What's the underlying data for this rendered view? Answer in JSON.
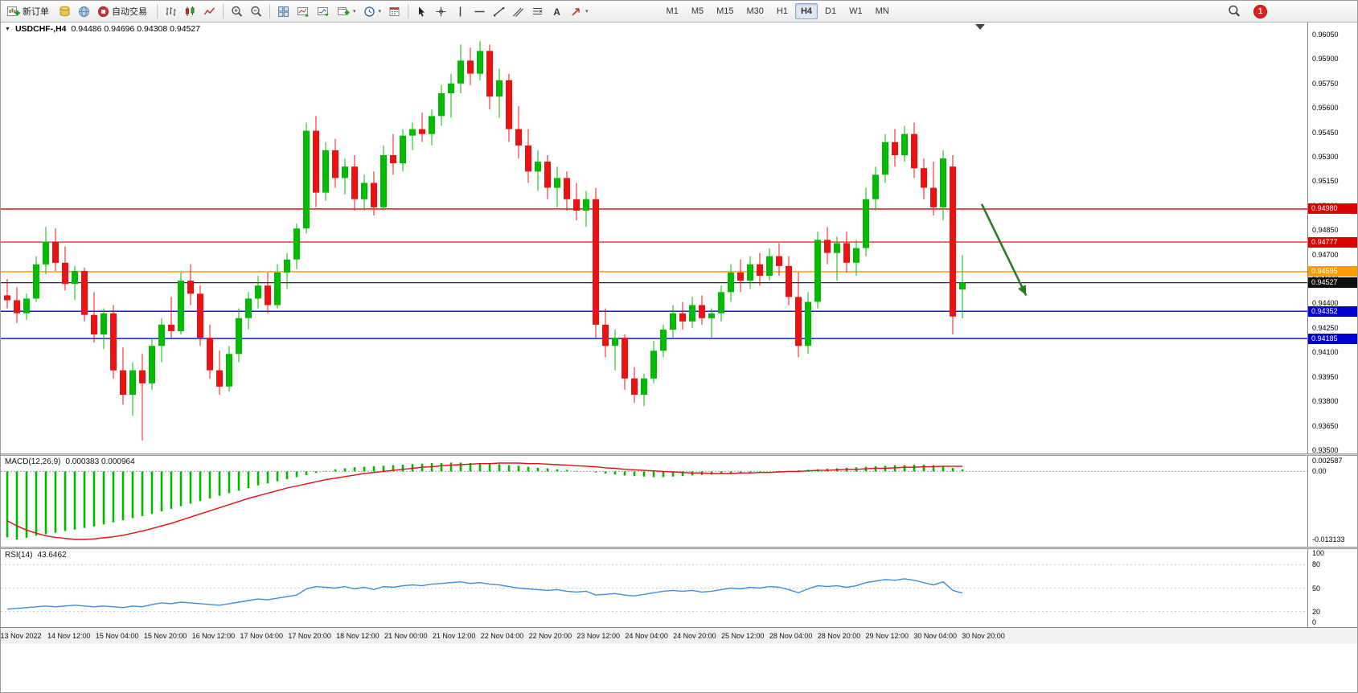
{
  "toolbar": {
    "new_order": "新订单",
    "autotrading": "自动交易",
    "timeframes": [
      "M1",
      "M5",
      "M15",
      "M30",
      "H1",
      "H4",
      "D1",
      "W1",
      "MN"
    ],
    "active_timeframe": "H4",
    "notification_count": "1"
  },
  "chart": {
    "symbol_label": "USDCHF-,H4",
    "ohlc": "0.94486 0.94696 0.94308 0.94527",
    "scale": {
      "top": 0.96124,
      "bottom": 0.9348
    },
    "price_axis_labels": [
      "0.96050",
      "0.95900",
      "0.95750",
      "0.95600",
      "0.95450",
      "0.95300",
      "0.95150",
      "0.95000",
      "0.94850",
      "0.94700",
      "0.94550",
      "0.94400",
      "0.94250",
      "0.94100",
      "0.93950",
      "0.93800",
      "0.93650",
      "0.93500"
    ],
    "time_axis_labels": [
      "13 Nov 2022",
      "14 Nov 12:00",
      "15 Nov 04:00",
      "15 Nov 20:00",
      "16 Nov 12:00",
      "17 Nov 04:00",
      "17 Nov 20:00",
      "18 Nov 12:00",
      "21 Nov 00:00",
      "21 Nov 12:00",
      "22 Nov 04:00",
      "22 Nov 20:00",
      "23 Nov 12:00",
      "24 Nov 04:00",
      "24 Nov 20:00",
      "25 Nov 12:00",
      "28 Nov 04:00",
      "28 Nov 20:00",
      "29 Nov 12:00",
      "30 Nov 04:00",
      "30 Nov 20:00"
    ],
    "lines": [
      {
        "price": 0.9498,
        "label": "0.94980",
        "color": "#dd0000",
        "width": 1.4
      },
      {
        "price": 0.94777,
        "label": "0.94777",
        "color": "#dd0000",
        "width": 1.1
      },
      {
        "price": 0.94595,
        "label": "0.94595",
        "color": "#ff9c00",
        "width": 1.6
      },
      {
        "price": 0.94527,
        "label": "0.94527",
        "color": "#101010",
        "width": 1.1
      },
      {
        "price": 0.94352,
        "label": "0.94352",
        "color": "#0000d0",
        "width": 1.4
      },
      {
        "price": 0.94185,
        "label": "0.94185",
        "color": "#0000d0",
        "width": 1.4
      }
    ],
    "arrow_annotation": {
      "from_bar": 101.0,
      "from_price": 0.9501,
      "to_bar": 105.6,
      "to_price": 0.9445,
      "color": "#2d7a27"
    }
  },
  "chart_data": {
    "type": "candlestick",
    "symbol": "USDCHF",
    "timeframe": "H4",
    "bull_color": "#00bb00",
    "bear_color": "#ee1111",
    "candles": [
      [
        0.9445,
        0.9455,
        0.9437,
        0.9442
      ],
      [
        0.9442,
        0.945,
        0.9428,
        0.9434
      ],
      [
        0.9434,
        0.9446,
        0.943,
        0.9443
      ],
      [
        0.9443,
        0.9469,
        0.9441,
        0.9464
      ],
      [
        0.9464,
        0.9487,
        0.9458,
        0.9478
      ],
      [
        0.9478,
        0.9486,
        0.946,
        0.9465
      ],
      [
        0.9465,
        0.9475,
        0.9448,
        0.9452
      ],
      [
        0.9452,
        0.9463,
        0.9442,
        0.946
      ],
      [
        0.946,
        0.9462,
        0.9429,
        0.9433
      ],
      [
        0.9433,
        0.9447,
        0.9416,
        0.9421
      ],
      [
        0.9421,
        0.9437,
        0.9412,
        0.9434
      ],
      [
        0.9434,
        0.9439,
        0.9394,
        0.9399
      ],
      [
        0.9399,
        0.9413,
        0.9378,
        0.9384
      ],
      [
        0.9384,
        0.9404,
        0.9371,
        0.9399
      ],
      [
        0.9399,
        0.9409,
        0.9356,
        0.9391
      ],
      [
        0.9391,
        0.9419,
        0.9387,
        0.9414
      ],
      [
        0.9414,
        0.9431,
        0.9404,
        0.9427
      ],
      [
        0.9427,
        0.9444,
        0.9419,
        0.9423
      ],
      [
        0.9423,
        0.9459,
        0.9421,
        0.9454
      ],
      [
        0.9454,
        0.9464,
        0.9439,
        0.9446
      ],
      [
        0.9446,
        0.9451,
        0.9414,
        0.9419
      ],
      [
        0.9419,
        0.9427,
        0.9394,
        0.9399
      ],
      [
        0.9399,
        0.9411,
        0.9384,
        0.9389
      ],
      [
        0.9389,
        0.9414,
        0.9386,
        0.9409
      ],
      [
        0.9409,
        0.9437,
        0.9404,
        0.9431
      ],
      [
        0.9431,
        0.9447,
        0.9424,
        0.9443
      ],
      [
        0.9443,
        0.9457,
        0.9437,
        0.9451
      ],
      [
        0.9451,
        0.9459,
        0.9434,
        0.9439
      ],
      [
        0.9439,
        0.9464,
        0.9437,
        0.9459
      ],
      [
        0.9459,
        0.9471,
        0.9449,
        0.9467
      ],
      [
        0.9467,
        0.9489,
        0.9461,
        0.9486
      ],
      [
        0.9486,
        0.9551,
        0.9483,
        0.9546
      ],
      [
        0.9546,
        0.9555,
        0.9499,
        0.9508
      ],
      [
        0.9508,
        0.9539,
        0.9503,
        0.9534
      ],
      [
        0.9534,
        0.9541,
        0.9511,
        0.9517
      ],
      [
        0.9517,
        0.9529,
        0.9507,
        0.9524
      ],
      [
        0.9524,
        0.9531,
        0.9497,
        0.9504
      ],
      [
        0.9504,
        0.9519,
        0.9497,
        0.9514
      ],
      [
        0.9514,
        0.9521,
        0.9494,
        0.9499
      ],
      [
        0.9499,
        0.9537,
        0.9497,
        0.9531
      ],
      [
        0.9531,
        0.9544,
        0.9519,
        0.9526
      ],
      [
        0.9526,
        0.9547,
        0.9521,
        0.9543
      ],
      [
        0.9543,
        0.9551,
        0.9534,
        0.9547
      ],
      [
        0.9547,
        0.9557,
        0.9539,
        0.9544
      ],
      [
        0.9544,
        0.9559,
        0.9537,
        0.9555
      ],
      [
        0.9555,
        0.9574,
        0.9549,
        0.9569
      ],
      [
        0.9569,
        0.9581,
        0.9554,
        0.9575
      ],
      [
        0.9575,
        0.9599,
        0.9569,
        0.9589
      ],
      [
        0.9589,
        0.9597,
        0.9574,
        0.9581
      ],
      [
        0.9581,
        0.9601,
        0.9577,
        0.9595
      ],
      [
        0.9595,
        0.9599,
        0.9559,
        0.9567
      ],
      [
        0.9567,
        0.9584,
        0.9554,
        0.9577
      ],
      [
        0.9577,
        0.9581,
        0.9539,
        0.9547
      ],
      [
        0.9547,
        0.9561,
        0.9529,
        0.9537
      ],
      [
        0.9537,
        0.9547,
        0.9514,
        0.9521
      ],
      [
        0.9521,
        0.9534,
        0.9509,
        0.9527
      ],
      [
        0.9527,
        0.9531,
        0.9504,
        0.9511
      ],
      [
        0.9511,
        0.9524,
        0.9499,
        0.9517
      ],
      [
        0.9517,
        0.9521,
        0.9497,
        0.9504
      ],
      [
        0.9504,
        0.9514,
        0.9491,
        0.9497
      ],
      [
        0.9497,
        0.9509,
        0.9487,
        0.9504
      ],
      [
        0.9504,
        0.9511,
        0.9419,
        0.9427
      ],
      [
        0.9427,
        0.9437,
        0.9407,
        0.9414
      ],
      [
        0.9414,
        0.9424,
        0.9399,
        0.9419
      ],
      [
        0.9419,
        0.9421,
        0.9387,
        0.9394
      ],
      [
        0.9394,
        0.9401,
        0.9379,
        0.9384
      ],
      [
        0.9384,
        0.9397,
        0.9377,
        0.9394
      ],
      [
        0.9394,
        0.9417,
        0.9391,
        0.9411
      ],
      [
        0.9411,
        0.9427,
        0.9407,
        0.9424
      ],
      [
        0.9424,
        0.9439,
        0.9419,
        0.9434
      ],
      [
        0.9434,
        0.9441,
        0.9424,
        0.9429
      ],
      [
        0.9429,
        0.9444,
        0.9425,
        0.9439
      ],
      [
        0.9439,
        0.9445,
        0.9427,
        0.9431
      ],
      [
        0.9431,
        0.9437,
        0.9419,
        0.9434
      ],
      [
        0.9434,
        0.9451,
        0.9429,
        0.9447
      ],
      [
        0.9447,
        0.9464,
        0.9441,
        0.9459
      ],
      [
        0.9459,
        0.9467,
        0.9447,
        0.9454
      ],
      [
        0.9454,
        0.9469,
        0.9449,
        0.9464
      ],
      [
        0.9464,
        0.9471,
        0.9451,
        0.9457
      ],
      [
        0.9457,
        0.9474,
        0.9454,
        0.9469
      ],
      [
        0.9469,
        0.9477,
        0.9457,
        0.9463
      ],
      [
        0.9463,
        0.9469,
        0.9439,
        0.9444
      ],
      [
        0.9444,
        0.9459,
        0.9407,
        0.9414
      ],
      [
        0.9414,
        0.9447,
        0.9409,
        0.9441
      ],
      [
        0.9441,
        0.9484,
        0.9437,
        0.9479
      ],
      [
        0.9479,
        0.9487,
        0.9464,
        0.9471
      ],
      [
        0.9471,
        0.9481,
        0.9454,
        0.9477
      ],
      [
        0.9477,
        0.9484,
        0.9459,
        0.9465
      ],
      [
        0.9465,
        0.9479,
        0.9457,
        0.9474
      ],
      [
        0.9474,
        0.9511,
        0.9469,
        0.9504
      ],
      [
        0.9504,
        0.9524,
        0.9497,
        0.9519
      ],
      [
        0.9519,
        0.9544,
        0.9514,
        0.9539
      ],
      [
        0.9539,
        0.9547,
        0.9524,
        0.9531
      ],
      [
        0.9531,
        0.9549,
        0.9527,
        0.9544
      ],
      [
        0.9544,
        0.9551,
        0.9517,
        0.9523
      ],
      [
        0.9523,
        0.9529,
        0.9504,
        0.9511
      ],
      [
        0.9511,
        0.9527,
        0.9494,
        0.9499
      ],
      [
        0.9499,
        0.9534,
        0.9491,
        0.9529
      ],
      [
        0.9524,
        0.9531,
        0.9421,
        0.9432
      ],
      [
        0.94486,
        0.94696,
        0.94308,
        0.94527
      ]
    ],
    "indicators": {
      "macd": {
        "label": "MACD(12,26,9)",
        "values_text": "0.000383 0.000964",
        "axis_labels": [
          "0.002587",
          "0.00",
          "-0.013133"
        ],
        "scale": {
          "top": 0.003,
          "bottom": -0.0145
        },
        "histogram_color": "#00b800",
        "signal_color": "#e01010",
        "histogram": [
          -0.0127,
          -0.0131,
          -0.0128,
          -0.0124,
          -0.0121,
          -0.0118,
          -0.0115,
          -0.0112,
          -0.0109,
          -0.0106,
          -0.0102,
          -0.0098,
          -0.0094,
          -0.009,
          -0.0086,
          -0.0082,
          -0.0077,
          -0.0072,
          -0.0067,
          -0.0062,
          -0.0057,
          -0.0052,
          -0.0047,
          -0.0042,
          -0.0037,
          -0.0032,
          -0.0027,
          -0.0023,
          -0.0019,
          -0.0015,
          -0.0011,
          -0.0007,
          -0.0003,
          0.0001,
          0.0004,
          0.0006,
          0.0008,
          0.0009,
          0.001,
          0.0011,
          0.0012,
          0.0013,
          0.0014,
          0.0015,
          0.0016,
          0.0016,
          0.0017,
          0.0017,
          0.0016,
          0.0016,
          0.0015,
          0.0014,
          0.0012,
          0.0011,
          0.0009,
          0.0007,
          0.0006,
          0.0004,
          0.0003,
          0.0001,
          0.0,
          -0.0002,
          -0.0004,
          -0.0006,
          -0.0008,
          -0.0009,
          -0.001,
          -0.0011,
          -0.0011,
          -0.001,
          -0.0009,
          -0.0008,
          -0.0007,
          -0.0006,
          -0.0005,
          -0.0004,
          -0.0003,
          -0.0002,
          -0.0001,
          0.0,
          0.0001,
          0.0001,
          0.0002,
          0.0003,
          0.0004,
          0.0005,
          0.0006,
          0.0007,
          0.0008,
          0.0009,
          0.001,
          0.0011,
          0.0012,
          0.0012,
          0.0013,
          0.0013,
          0.0012,
          0.001,
          0.0007,
          0.000383
        ],
        "signal": [
          -0.0095,
          -0.0105,
          -0.0113,
          -0.0119,
          -0.0124,
          -0.0127,
          -0.0129,
          -0.0131,
          -0.0131,
          -0.013,
          -0.0128,
          -0.0126,
          -0.0123,
          -0.0119,
          -0.0115,
          -0.011,
          -0.0105,
          -0.01,
          -0.0094,
          -0.0088,
          -0.0082,
          -0.0076,
          -0.007,
          -0.0064,
          -0.0058,
          -0.0052,
          -0.0047,
          -0.0042,
          -0.0037,
          -0.0032,
          -0.0028,
          -0.0024,
          -0.002,
          -0.0016,
          -0.0013,
          -0.001,
          -0.0007,
          -0.0004,
          -0.0002,
          0.0,
          0.0002,
          0.0004,
          0.0006,
          0.0008,
          0.0009,
          0.0011,
          0.0012,
          0.0013,
          0.0014,
          0.0015,
          0.0015,
          0.0016,
          0.0016,
          0.0016,
          0.0015,
          0.0015,
          0.0014,
          0.0013,
          0.0012,
          0.0011,
          0.001,
          0.0009,
          0.0007,
          0.0006,
          0.0004,
          0.0003,
          0.0002,
          0.0001,
          0.0,
          -0.0001,
          -0.0002,
          -0.0003,
          -0.0003,
          -0.0004,
          -0.0004,
          -0.0004,
          -0.0003,
          -0.0003,
          -0.0002,
          -0.0002,
          -0.0001,
          0.0,
          0.0,
          0.0001,
          0.0002,
          0.0002,
          0.0003,
          0.0004,
          0.0004,
          0.0005,
          0.0006,
          0.0006,
          0.0007,
          0.0008,
          0.0008,
          0.0009,
          0.0009,
          0.001,
          0.001,
          0.000964
        ]
      },
      "rsi": {
        "label": "RSI(14)",
        "value_text": "43.6462",
        "axis_labels": [
          "100",
          "80",
          "50",
          "20",
          "0"
        ],
        "levels": [
          80,
          50,
          20
        ],
        "color": "#3e8ede",
        "values": [
          23,
          24,
          25,
          26,
          27,
          26,
          27,
          28,
          27,
          26,
          27,
          26,
          25,
          27,
          26,
          29,
          31,
          30,
          32,
          31,
          30,
          29,
          28,
          30,
          32,
          34,
          36,
          35,
          37,
          39,
          41,
          49,
          52,
          51,
          50,
          52,
          49,
          51,
          48,
          52,
          51,
          53,
          54,
          53,
          55,
          56,
          57,
          58,
          56,
          57,
          55,
          54,
          52,
          50,
          49,
          48,
          47,
          48,
          46,
          45,
          46,
          41,
          42,
          43,
          41,
          40,
          42,
          44,
          46,
          47,
          46,
          47,
          45,
          46,
          48,
          50,
          49,
          51,
          50,
          52,
          51,
          48,
          44,
          49,
          53,
          52,
          53,
          51,
          53,
          57,
          59,
          61,
          60,
          62,
          60,
          57,
          54,
          58,
          47,
          43.6462
        ]
      }
    }
  }
}
